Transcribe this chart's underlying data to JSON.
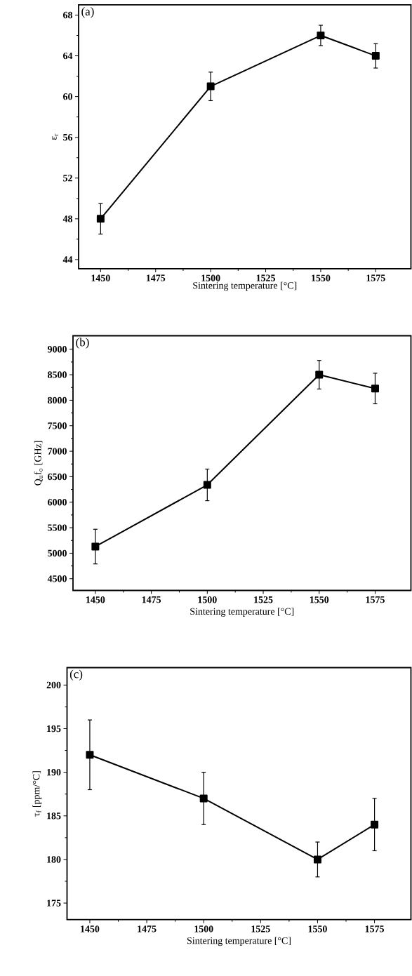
{
  "chart_data": [
    {
      "type": "line",
      "xlabel": "Sintering temperature [°C]",
      "ylabel": "ε$_{r}$",
      "annotations": [
        "(a)"
      ],
      "x": [
        1450,
        1500,
        1550,
        1575
      ],
      "values": [
        48,
        61,
        66,
        64
      ],
      "errors": [
        1.5,
        1.4,
        1,
        1.2
      ],
      "color": "#000000",
      "marker": "square",
      "line_style": "solid",
      "xlim": [
        1440,
        1591
      ],
      "ylim": [
        43.1,
        69
      ],
      "xticks": [
        1450,
        1475,
        1500,
        1525,
        1550,
        1575
      ],
      "yticks": [
        44,
        48,
        52,
        56,
        60,
        64,
        68
      ]
    },
    {
      "type": "line",
      "xlabel": "Sintering temperature [°C]",
      "ylabel": "Q$_{u}$f$_{o}$ [GHz]",
      "annotations": [
        "(b)"
      ],
      "x": [
        1450,
        1500,
        1550,
        1575
      ],
      "values": [
        5130,
        6340,
        8500,
        8230
      ],
      "errors": [
        340,
        310,
        280,
        300
      ],
      "color": "#000000",
      "marker": "square",
      "line_style": "solid",
      "xlim": [
        1440,
        1591
      ],
      "ylim": [
        4270,
        9265
      ],
      "xticks": [
        1450,
        1475,
        1500,
        1525,
        1550,
        1575
      ],
      "yticks": [
        4500,
        5000,
        5500,
        6000,
        6500,
        7000,
        7500,
        8000,
        8500,
        9000
      ]
    },
    {
      "type": "line",
      "xlabel": "Sintering temperature [°C]",
      "ylabel": "τ$_{f}$ [ppm/°C]",
      "annotations": [
        "(c)"
      ],
      "x": [
        1450,
        1500,
        1550,
        1575
      ],
      "values": [
        192,
        187,
        180,
        184
      ],
      "errors": [
        4,
        3,
        2,
        3
      ],
      "color": "#000000",
      "marker": "square",
      "line_style": "solid",
      "xlim": [
        1440,
        1591
      ],
      "ylim": [
        173.1,
        202
      ],
      "xticks": [
        1450,
        1475,
        1500,
        1525,
        1550,
        1575
      ],
      "yticks": [
        175,
        180,
        185,
        190,
        195,
        200
      ]
    }
  ]
}
